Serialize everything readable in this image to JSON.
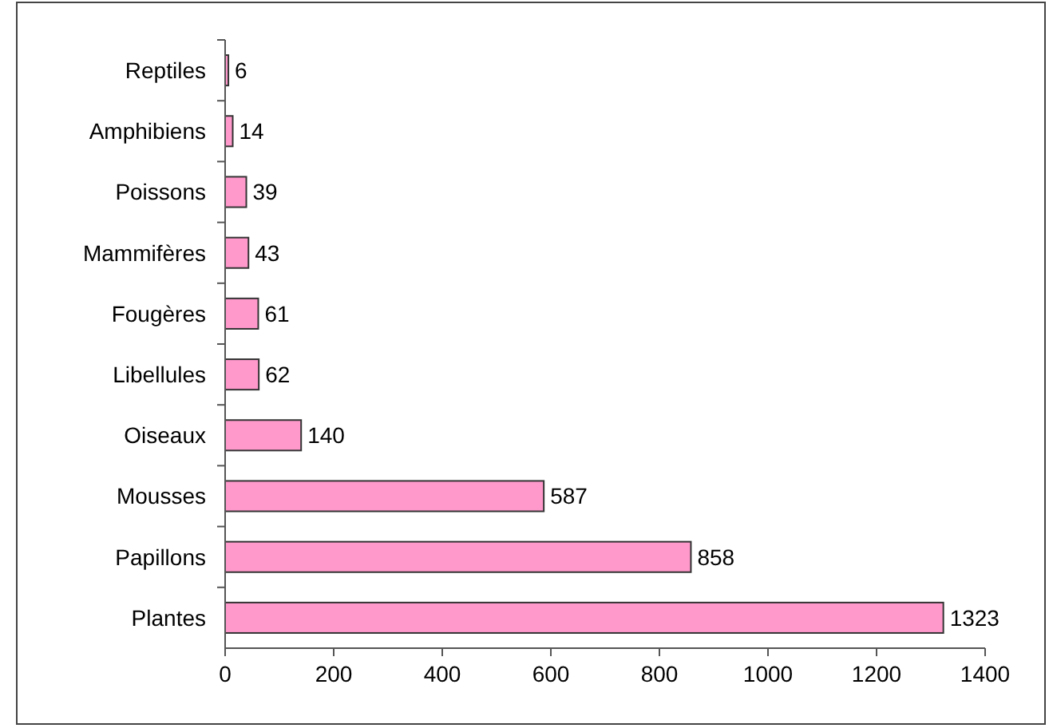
{
  "chart_data": {
    "type": "bar",
    "orientation": "horizontal",
    "categories": [
      "Reptiles",
      "Amphibiens",
      "Poissons",
      "Mammifères",
      "Fougères",
      "Libellules",
      "Oiseaux",
      "Mousses",
      "Papillons",
      "Plantes"
    ],
    "values": [
      6,
      14,
      39,
      43,
      61,
      62,
      140,
      587,
      858,
      1323
    ],
    "color": "#ff99cc",
    "xlim": [
      0,
      1400
    ],
    "xticks": [
      0,
      200,
      400,
      600,
      800,
      1000,
      1200,
      1400
    ],
    "data_labels": true
  }
}
